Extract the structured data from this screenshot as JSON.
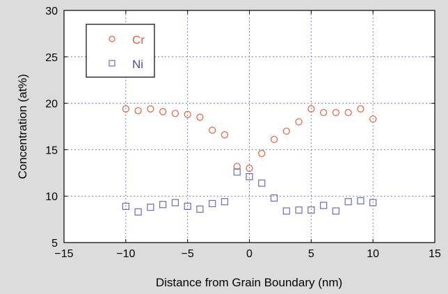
{
  "chart_data": {
    "type": "scatter",
    "xlabel": "Distance from Grain Boundary (nm)",
    "ylabel": "Concentration (at%)",
    "xlim": [
      -15,
      15
    ],
    "ylim": [
      5,
      30
    ],
    "x_ticks": [
      -15,
      -10,
      -5,
      0,
      5,
      10,
      15
    ],
    "y_ticks": [
      5,
      10,
      15,
      20,
      25,
      30
    ],
    "x_tick_labels": [
      "−15",
      "−10",
      "−5",
      "0",
      "5",
      "10",
      "15"
    ],
    "y_tick_labels": [
      "5",
      "10",
      "15",
      "20",
      "25",
      "30"
    ],
    "grid": true,
    "legend_position": "top-left",
    "series": [
      {
        "name": "Cr",
        "marker": "circle",
        "color": "#e8603c",
        "points": [
          [
            -10,
            19.4
          ],
          [
            -9,
            19.2
          ],
          [
            -8,
            19.4
          ],
          [
            -7,
            19.1
          ],
          [
            -6,
            18.9
          ],
          [
            -5,
            18.8
          ],
          [
            -4,
            18.5
          ],
          [
            -3,
            17.1
          ],
          [
            -2,
            16.6
          ],
          [
            -1,
            13.2
          ],
          [
            0,
            13.0
          ],
          [
            1,
            14.6
          ],
          [
            2,
            16.1
          ],
          [
            3,
            17.0
          ],
          [
            4,
            18.0
          ],
          [
            5,
            19.4
          ],
          [
            6,
            19.0
          ],
          [
            7,
            19.0
          ],
          [
            8,
            19.0
          ],
          [
            9,
            19.4
          ],
          [
            10,
            18.3
          ]
        ]
      },
      {
        "name": "Ni",
        "marker": "square",
        "color": "#6a6ac0",
        "points": [
          [
            -10,
            8.9
          ],
          [
            -9,
            8.3
          ],
          [
            -8,
            8.8
          ],
          [
            -7,
            9.1
          ],
          [
            -6,
            9.3
          ],
          [
            -5,
            8.9
          ],
          [
            -4,
            8.6
          ],
          [
            -3,
            9.2
          ],
          [
            -2,
            9.4
          ],
          [
            -1,
            12.6
          ],
          [
            0,
            12.1
          ],
          [
            1,
            11.4
          ],
          [
            2,
            9.8
          ],
          [
            3,
            8.4
          ],
          [
            4,
            8.5
          ],
          [
            5,
            8.5
          ],
          [
            6,
            9.0
          ],
          [
            7,
            8.4
          ],
          [
            8,
            9.4
          ],
          [
            9,
            9.5
          ],
          [
            10,
            9.3
          ]
        ]
      }
    ]
  }
}
